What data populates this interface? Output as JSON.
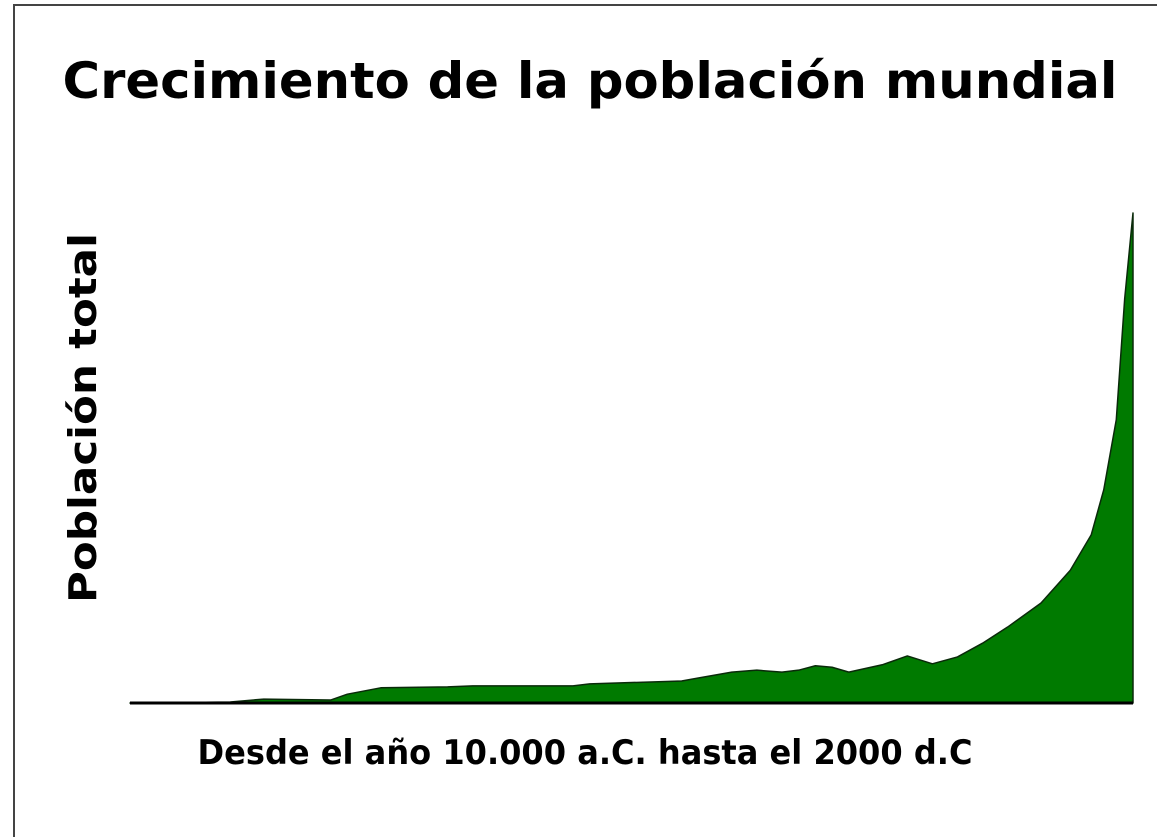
{
  "chart_data": {
    "type": "area",
    "title": "Crecimiento de la población mundial",
    "y_label": "Población total",
    "x_label": "Desde el año 10.000 a.C. hasta el 2000 d.C",
    "color": "#007a00",
    "x": [
      -10000,
      -8800,
      -8400,
      -7600,
      -7400,
      -7000,
      -6200,
      -5900,
      -4700,
      -4500,
      -3400,
      -3200,
      -2800,
      -2500,
      -2200,
      -2000,
      -1800,
      -1600,
      -1400,
      -1000,
      -700,
      -400,
      -100,
      200,
      500,
      900,
      1250,
      1500,
      1650,
      1800,
      1900,
      2000
    ],
    "values": [
      0,
      0.2,
      0.8,
      0.6,
      1.8,
      3.1,
      3.3,
      3.5,
      3.5,
      3.9,
      4.5,
      5.1,
      6.3,
      6.7,
      6.3,
      6.7,
      7.6,
      7.3,
      6.3,
      7.8,
      9.6,
      8.0,
      9.4,
      12.2,
      15.5,
      20.4,
      27.1,
      34.3,
      43.5,
      57.8,
      82.4,
      100
    ],
    "xlim": [
      -10000,
      2000
    ],
    "ylim": [
      0,
      100
    ]
  }
}
